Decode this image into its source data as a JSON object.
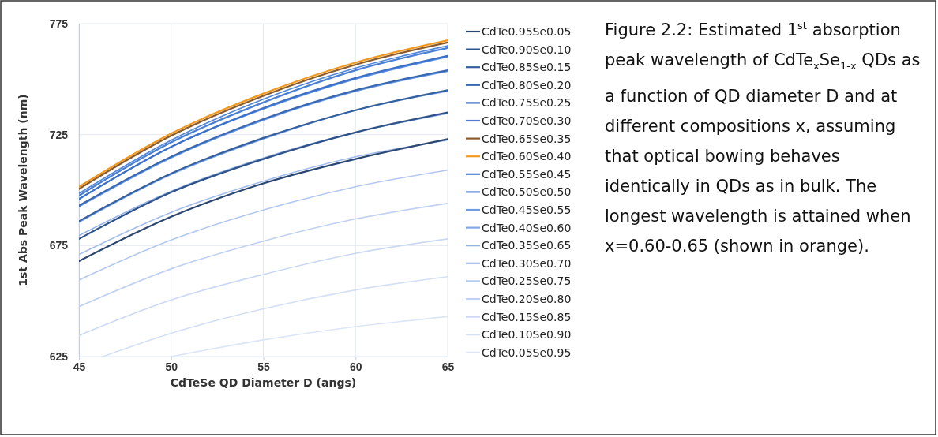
{
  "chart_data": {
    "type": "line",
    "xlabel": "CdTeSe QD Diameter D (angs)",
    "ylabel": "1st Abs Peak Wavelength (nm)",
    "x": [
      45,
      50,
      55,
      60,
      65
    ],
    "xlim": [
      45,
      65
    ],
    "xticks": [
      45,
      50,
      55,
      60,
      65
    ],
    "ylim": [
      625,
      775
    ],
    "yticks": [
      625,
      675,
      725,
      775
    ],
    "grid": true,
    "legend": "right",
    "marker": "none",
    "line_style": "solid",
    "annotations": [
      "Figure 2.2: Estimated 1$^{st}$ absorption peak wavelength of CdTe$_{x}$Se$_{1-x}$ QDs as a function of QD diameter D and at different compositions x, assuming that optical bowing behaves identically in QDs as in bulk.  The longest wavelength is attained when x=0.60-0.65 (shown in orange)."
    ],
    "series": [
      {
        "name": "CdTe0.95Se0.05",
        "color": "#2b4670",
        "values": [
          668,
          688,
          703,
          714,
          723
        ]
      },
      {
        "name": "CdTe0.90Se0.10",
        "color": "#2f5288",
        "values": [
          678,
          699,
          714,
          726,
          735
        ]
      },
      {
        "name": "CdTe0.85Se0.15",
        "color": "#3460a0",
        "values": [
          686,
          707.5,
          723.5,
          736,
          745
        ]
      },
      {
        "name": "CdTe0.80Se0.20",
        "color": "#3868b4",
        "values": [
          693,
          715,
          732,
          745,
          754
        ]
      },
      {
        "name": "CdTe0.75Se0.25",
        "color": "#3b6fc8",
        "values": [
          696,
          719.5,
          737,
          750.5,
          760.5
        ]
      },
      {
        "name": "CdTe0.70Se0.30",
        "color": "#4a7fd4",
        "values": [
          697.5,
          721.5,
          739.5,
          754,
          764
        ]
      },
      {
        "name": "CdTe0.65Se0.35",
        "color": "#8b5a2b",
        "values": [
          700.5,
          724.5,
          742.5,
          756.5,
          766.5
        ]
      },
      {
        "name": "CdTe0.60Se0.40",
        "color": "#f39a1e",
        "values": [
          701.5,
          725.5,
          743.5,
          757.5,
          767.5
        ]
      },
      {
        "name": "CdTe0.55Se0.45",
        "color": "#4f86dc",
        "values": [
          698.5,
          722.5,
          741,
          755,
          765
        ]
      },
      {
        "name": "CdTe0.50Se0.50",
        "color": "#5a8fe0",
        "values": [
          696,
          719.5,
          736.5,
          750,
          760
        ]
      },
      {
        "name": "CdTe0.45Se0.55",
        "color": "#6d9be4",
        "values": [
          692.5,
          714.5,
          731.5,
          744.5,
          753.5
        ]
      },
      {
        "name": "CdTe0.40Se0.60",
        "color": "#7fa7e6",
        "values": [
          685.5,
          707,
          723,
          736,
          744.5
        ]
      },
      {
        "name": "CdTe0.35Se0.65",
        "color": "#92b3ea",
        "values": [
          679.5,
          699.5,
          714.5,
          726,
          734.5
        ]
      },
      {
        "name": "CdTe0.30Se0.70",
        "color": "#a2bdec",
        "values": [
          671,
          690,
          704,
          715,
          722.5
        ]
      },
      {
        "name": "CdTe0.25Se0.75",
        "color": "#b3c8ef",
        "values": [
          659.5,
          677.5,
          691,
          701.5,
          709
        ]
      },
      {
        "name": "CdTe0.20Se0.80",
        "color": "#c0d1f1",
        "values": [
          647.5,
          664.5,
          677,
          687,
          694
        ]
      },
      {
        "name": "CdTe0.15Se0.85",
        "color": "#cbd9f3",
        "values": [
          634.5,
          650.5,
          662,
          671.5,
          678
        ]
      },
      {
        "name": "CdTe0.10Se0.90",
        "color": "#d5e0f5",
        "x": [
          46.3,
          50,
          55,
          60,
          65
        ],
        "values": [
          625,
          635.5,
          646.5,
          655,
          661
        ]
      },
      {
        "name": "CdTe0.05Se0.95",
        "color": "#dde6f7",
        "x": [
          50,
          55,
          60,
          65
        ],
        "values": [
          625,
          632.5,
          638.5,
          643
        ]
      }
    ]
  }
}
